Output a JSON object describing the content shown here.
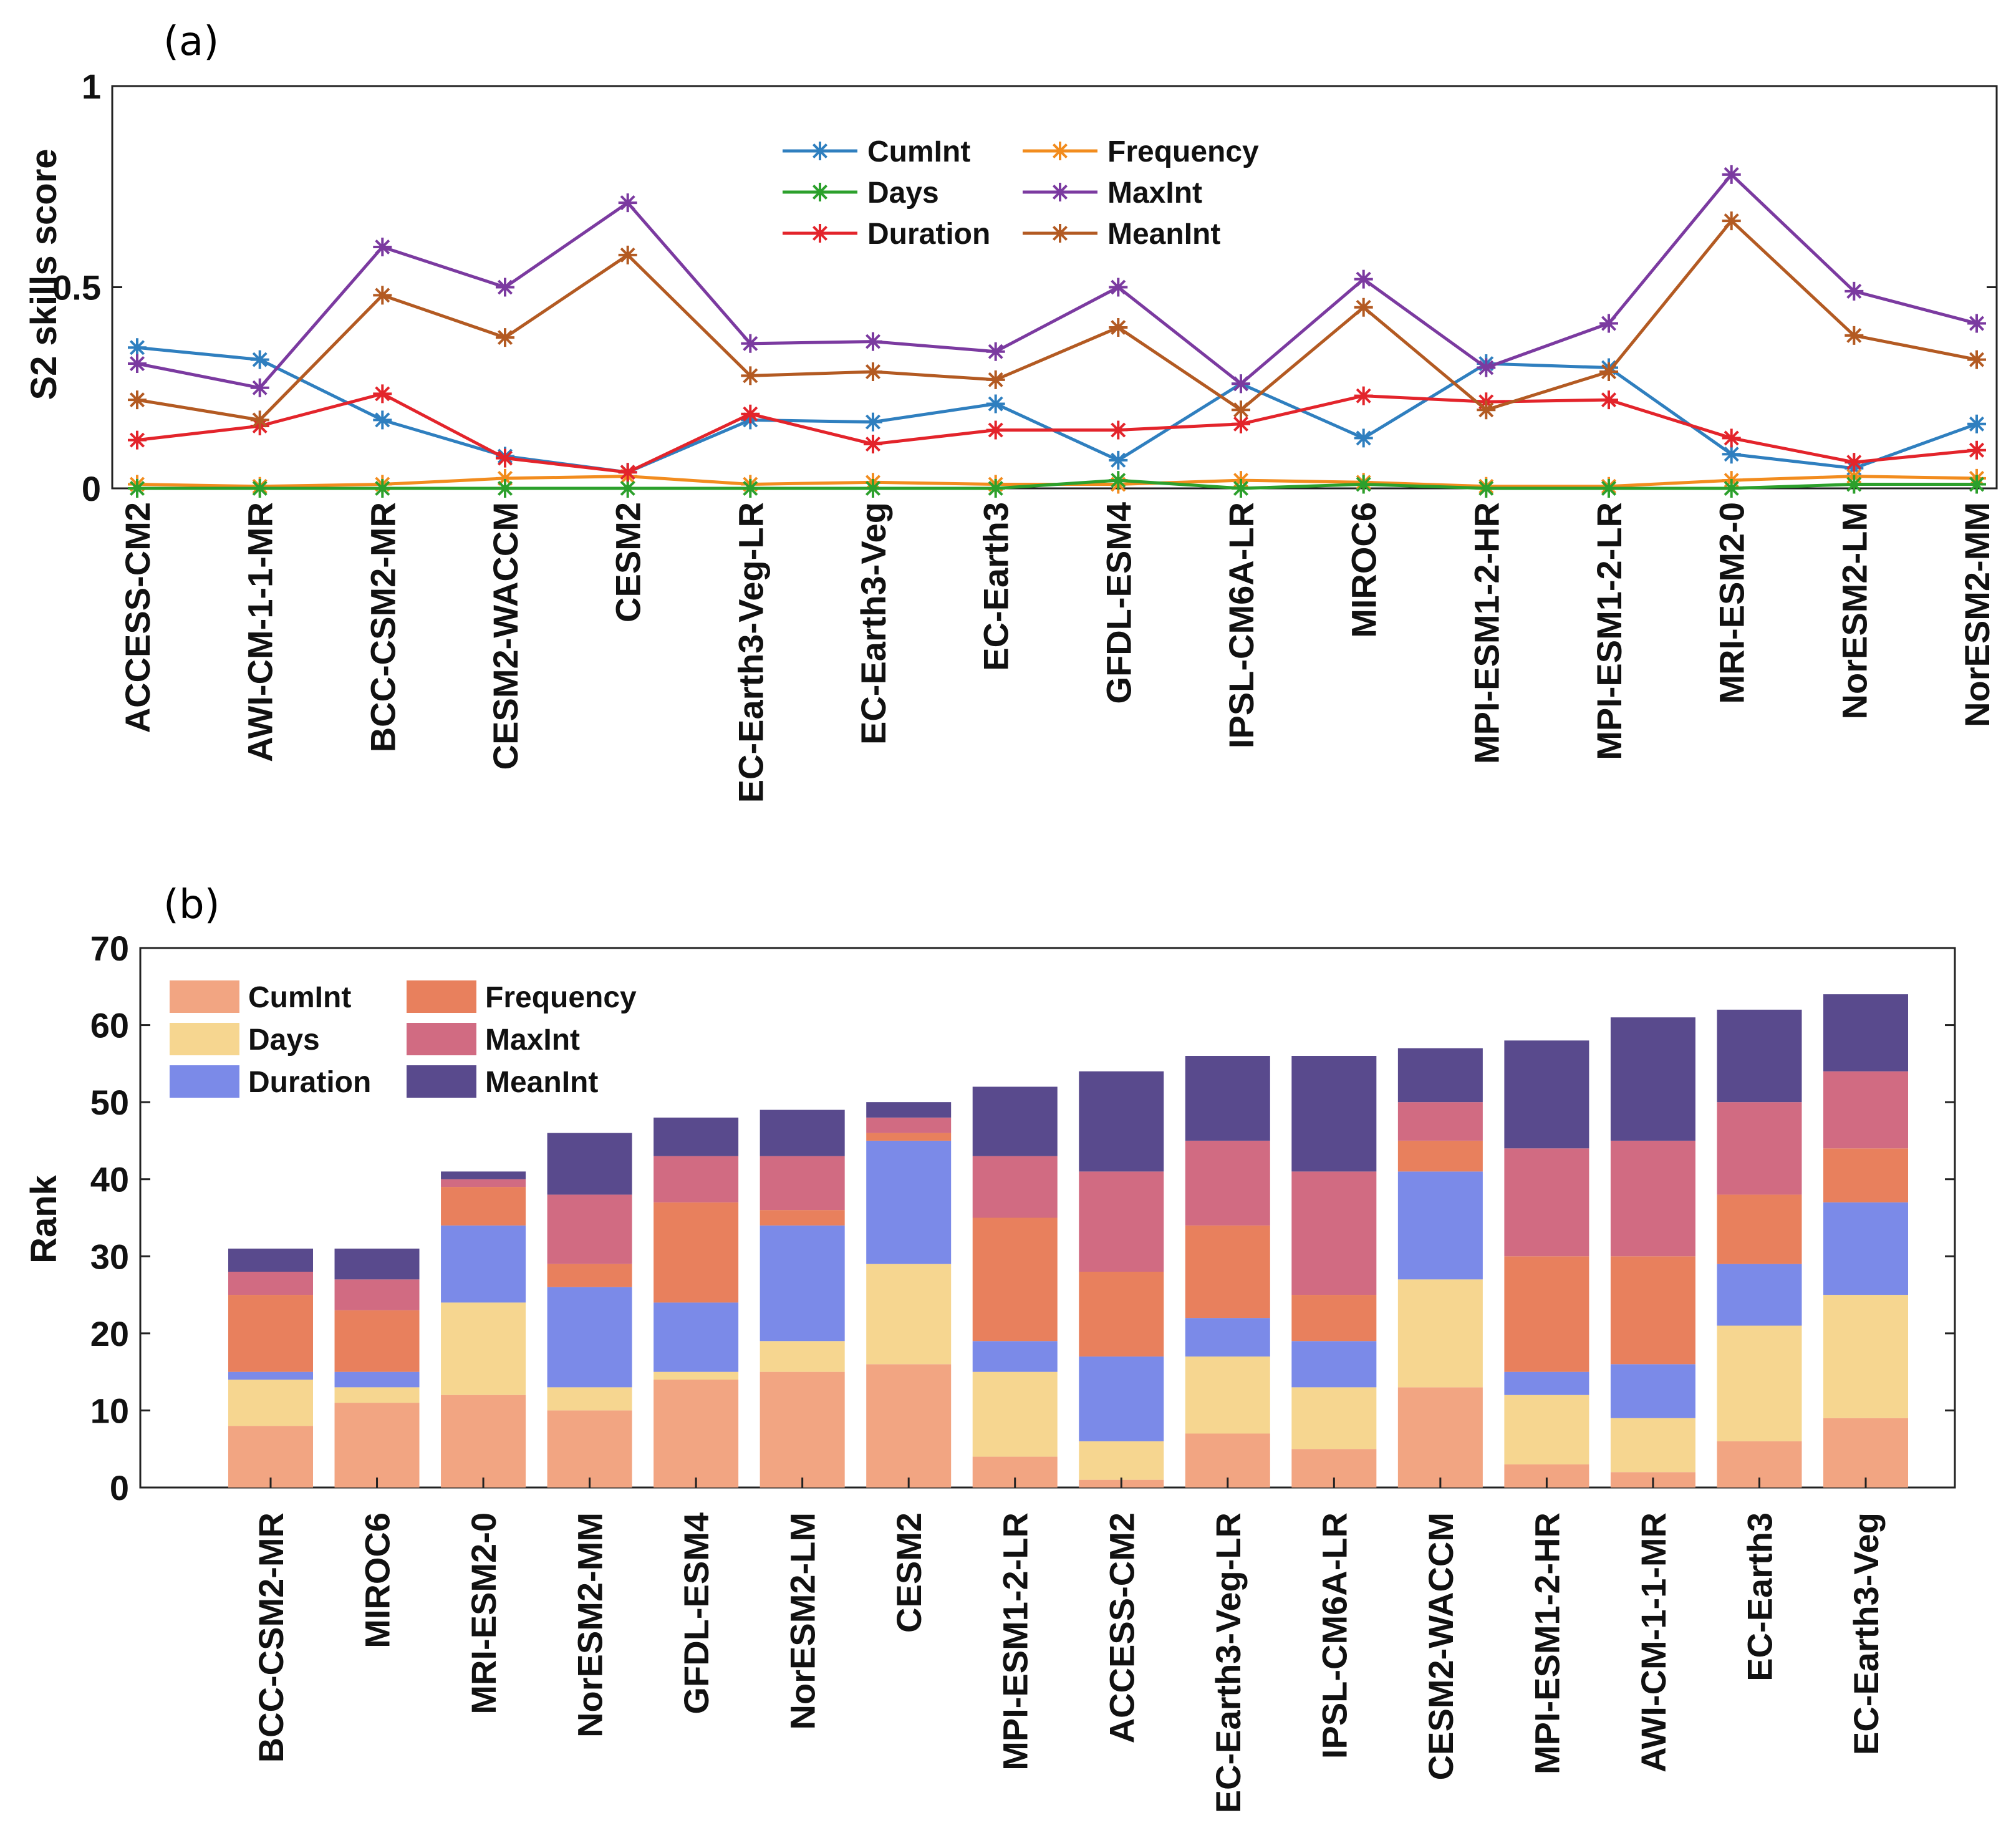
{
  "colors": {
    "CumInt": "#2f7fbf",
    "Frequency": "#f28c1e",
    "Days": "#2ca02c",
    "MaxInt": "#7b3aa0",
    "Duration": "#e3242b",
    "MeanInt": "#b35a22",
    "bar_CumInt": "#f2a582",
    "bar_Days": "#f6d690",
    "bar_Duration": "#7b8ae8",
    "bar_Frequency": "#e8805d",
    "bar_MaxInt": "#d16b82",
    "bar_MeanInt": "#594a8d"
  },
  "chart_data": [
    {
      "panel_label": "(a)",
      "type": "line",
      "title": "",
      "xlabel": "",
      "ylabel": "S2 skills score",
      "ylim": [
        0,
        1
      ],
      "yticks": [
        0,
        0.5,
        1
      ],
      "ytick_labels": [
        "0",
        "0.5",
        "1"
      ],
      "categories": [
        "ACCESS-CM2",
        "AWI-CM-1-1-MR",
        "BCC-CSM2-MR",
        "CESM2-WACCM",
        "CESM2",
        "EC-Earth3-Veg-LR",
        "EC-Earth3-Veg",
        "EC-Earth3",
        "GFDL-ESM4",
        "IPSL-CM6A-LR",
        "MIROC6",
        "MPI-ESM1-2-HR",
        "MPI-ESM1-2-LR",
        "MRI-ESM2-0",
        "NorESM2-LM",
        "NorESM2-MM"
      ],
      "legend": [
        "CumInt",
        "Frequency",
        "Days",
        "MaxInt",
        "Duration",
        "MeanInt"
      ],
      "series": [
        {
          "name": "CumInt",
          "values": [
            0.35,
            0.32,
            0.17,
            0.08,
            0.04,
            0.17,
            0.165,
            0.21,
            0.07,
            0.26,
            0.125,
            0.31,
            0.3,
            0.085,
            0.05,
            0.16
          ]
        },
        {
          "name": "Frequency",
          "values": [
            0.01,
            0.005,
            0.01,
            0.025,
            0.03,
            0.01,
            0.015,
            0.01,
            0.01,
            0.02,
            0.015,
            0.005,
            0.005,
            0.02,
            0.03,
            0.025
          ]
        },
        {
          "name": "Days",
          "values": [
            0.0,
            0.0,
            0.0,
            0.0,
            0.0,
            0.0,
            0.0,
            0.0,
            0.02,
            0.0,
            0.01,
            0.0,
            0.0,
            0.0,
            0.01,
            0.01
          ]
        },
        {
          "name": "MaxInt",
          "values": [
            0.31,
            0.25,
            0.6,
            0.5,
            0.71,
            0.36,
            0.365,
            0.34,
            0.5,
            0.26,
            0.52,
            0.3,
            0.41,
            0.78,
            0.49,
            0.41
          ]
        },
        {
          "name": "Duration",
          "values": [
            0.12,
            0.155,
            0.235,
            0.075,
            0.04,
            0.185,
            0.11,
            0.145,
            0.145,
            0.16,
            0.23,
            0.215,
            0.22,
            0.125,
            0.065,
            0.095
          ]
        },
        {
          "name": "MeanInt",
          "values": [
            0.22,
            0.17,
            0.48,
            0.375,
            0.58,
            0.28,
            0.29,
            0.27,
            0.4,
            0.195,
            0.45,
            0.195,
            0.29,
            0.665,
            0.38,
            0.32
          ]
        }
      ]
    },
    {
      "panel_label": "(b)",
      "type": "bar",
      "stacked": true,
      "title": "",
      "xlabel": "",
      "ylabel": "Rank",
      "ylim": [
        0,
        70
      ],
      "yticks": [
        0,
        10,
        20,
        30,
        40,
        50,
        60,
        70
      ],
      "ytick_labels": [
        "0",
        "10",
        "20",
        "30",
        "40",
        "50",
        "60",
        "70"
      ],
      "categories": [
        "BCC-CSM2-MR",
        "MIROC6",
        "MRI-ESM2-0",
        "NorESM2-MM",
        "GFDL-ESM4",
        "NorESM2-LM",
        "CESM2",
        "MPI-ESM1-2-LR",
        "ACCESS-CM2",
        "EC-Earth3-Veg-LR",
        "IPSL-CM6A-LR",
        "CESM2-WACCM",
        "MPI-ESM1-2-HR",
        "AWI-CM-1-1-MR",
        "EC-Earth3",
        "EC-Earth3-Veg"
      ],
      "legend": [
        "CumInt",
        "Frequency",
        "Days",
        "MaxInt",
        "Duration",
        "MeanInt"
      ],
      "series": [
        {
          "name": "CumInt",
          "values": [
            8,
            11,
            12,
            10,
            14,
            15,
            16,
            4,
            1,
            7,
            5,
            13,
            3,
            2,
            6,
            9
          ]
        },
        {
          "name": "Days",
          "values": [
            6,
            2,
            12,
            3,
            1,
            4,
            13,
            11,
            5,
            10,
            8,
            14,
            9,
            7,
            15,
            16
          ]
        },
        {
          "name": "Duration",
          "values": [
            1,
            2,
            10,
            13,
            9,
            15,
            16,
            4,
            11,
            5,
            6,
            14,
            3,
            7,
            8,
            12
          ]
        },
        {
          "name": "Frequency",
          "values": [
            10,
            8,
            5,
            3,
            13,
            2,
            1,
            16,
            11,
            12,
            6,
            4,
            15,
            14,
            9,
            7
          ]
        },
        {
          "name": "MaxInt",
          "values": [
            3,
            4,
            1,
            9,
            6,
            7,
            2,
            8,
            13,
            11,
            16,
            5,
            14,
            15,
            12,
            10
          ]
        },
        {
          "name": "MeanInt",
          "values": [
            3,
            4,
            1,
            8,
            5,
            6,
            2,
            9,
            13,
            11,
            15,
            7,
            14,
            16,
            12,
            10
          ]
        }
      ]
    }
  ]
}
